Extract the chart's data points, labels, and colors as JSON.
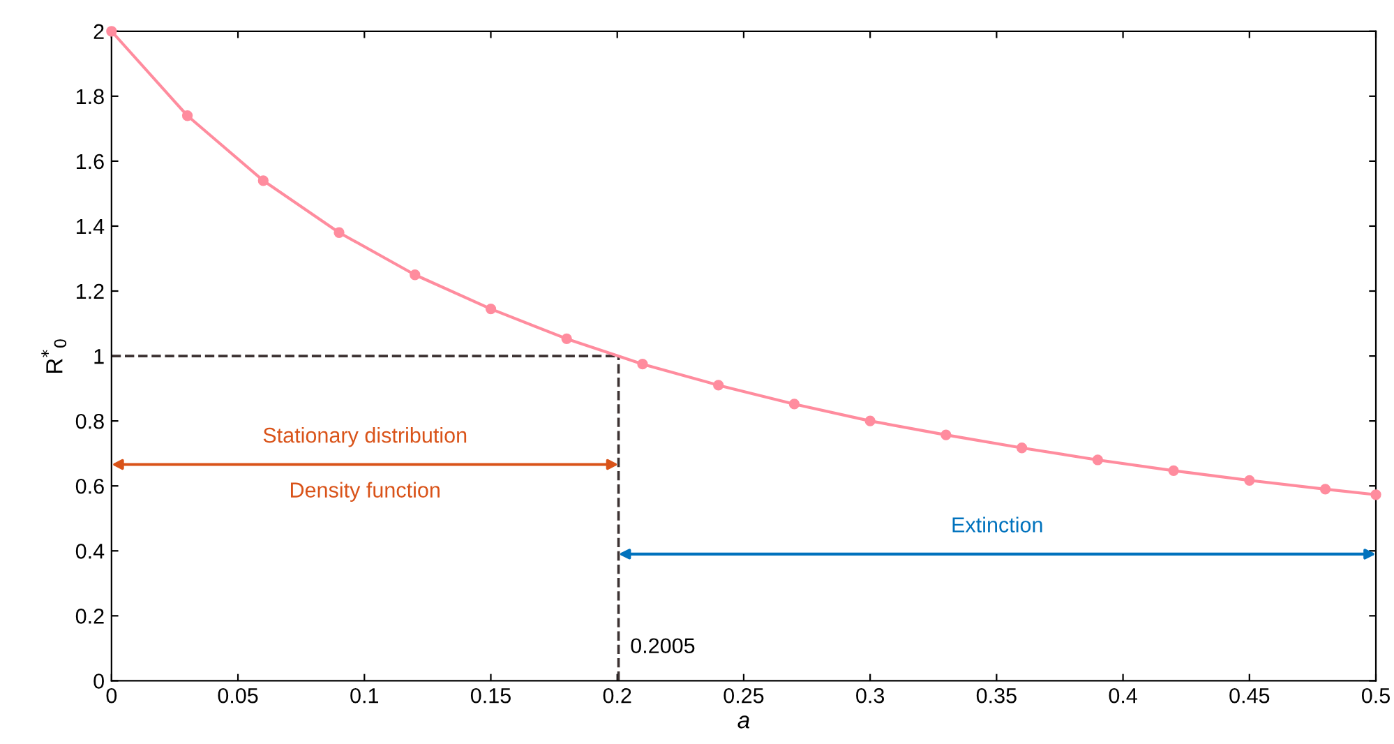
{
  "chart_data": {
    "type": "line",
    "xlabel": "a",
    "ylabel": "R$^{*}$$_{0}$",
    "x": [
      0,
      0.03,
      0.06,
      0.09,
      0.12,
      0.15,
      0.18,
      0.21,
      0.24,
      0.27,
      0.3,
      0.33,
      0.36,
      0.39,
      0.42,
      0.45,
      0.48,
      0.5
    ],
    "series": [
      {
        "color": "#ff8c9e",
        "values": [
          2.0,
          1.74,
          1.54,
          1.38,
          1.25,
          1.145,
          1.053,
          0.975,
          0.91,
          0.852,
          0.8,
          0.757,
          0.717,
          0.68,
          0.647,
          0.617,
          0.59,
          0.573
        ]
      }
    ],
    "marker": "circle",
    "line_style": "solid",
    "xlim": [
      0,
      0.5
    ],
    "xticks": [
      0,
      0.05,
      0.1,
      0.15,
      0.2,
      0.25,
      0.3,
      0.35,
      0.4,
      0.45,
      0.5
    ],
    "ylim": [
      0,
      2
    ],
    "yticks": [
      0,
      0.2,
      0.4,
      0.6,
      0.8,
      1,
      1.2,
      1.4,
      1.6,
      1.8,
      2
    ],
    "grid": false,
    "legend": false,
    "ref_lines": [
      {
        "axis": "x",
        "value": 0.2005,
        "label": "0.2005",
        "color": "#3c3232",
        "line_style": "dashed"
      },
      {
        "axis": "y",
        "value": 1,
        "color": "#3c3232",
        "line_style": "dashed"
      }
    ],
    "annotations": [
      "Stationary distribution",
      "Density function",
      "Extinction"
    ]
  }
}
